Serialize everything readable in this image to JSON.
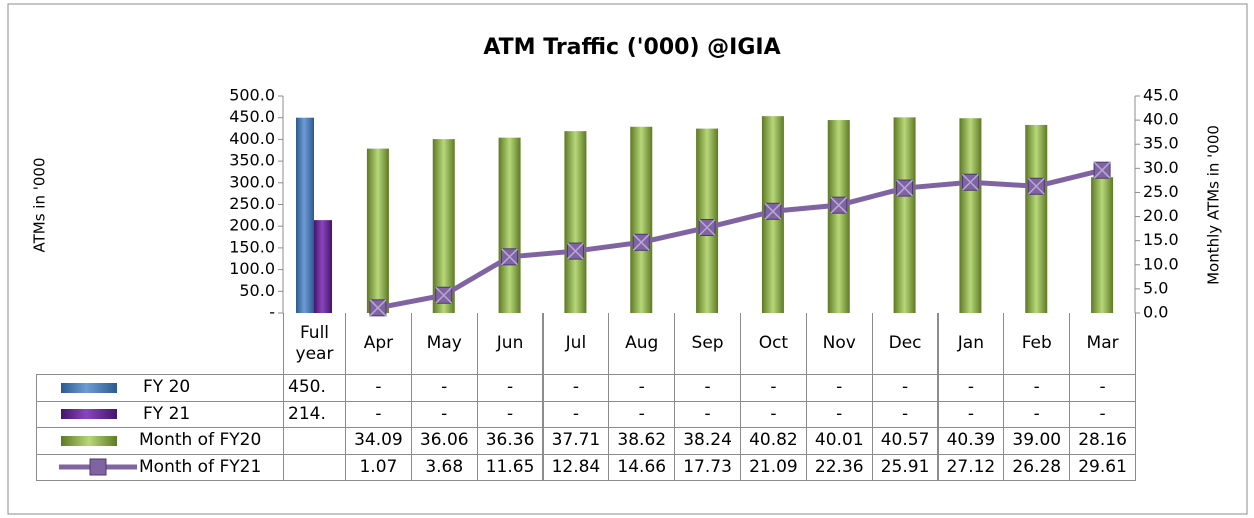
{
  "chart_data": {
    "type": "bar",
    "title": "ATM Traffic ('000) @IGIA",
    "y_label": "ATMs in '000",
    "y2_label": "Monthly  ATMs in '000",
    "categories": [
      "Full year",
      "Apr",
      "May",
      "Jun",
      "Jul",
      "Aug",
      "Sep",
      "Oct",
      "Nov",
      "Dec",
      "Jan",
      "Feb",
      "Mar"
    ],
    "ylim": [
      0,
      500
    ],
    "yticks": [
      {
        "value": 0,
        "label": "-"
      },
      {
        "value": 50,
        "label": "50.0"
      },
      {
        "value": 100,
        "label": "100.0"
      },
      {
        "value": 150,
        "label": "150.0"
      },
      {
        "value": 200,
        "label": "200.0"
      },
      {
        "value": 250,
        "label": "250.0"
      },
      {
        "value": 300,
        "label": "300.0"
      },
      {
        "value": 350,
        "label": "350.0"
      },
      {
        "value": 400,
        "label": "400.0"
      },
      {
        "value": 450,
        "label": "450.0"
      },
      {
        "value": 500,
        "label": "500.0"
      }
    ],
    "y2lim": [
      0,
      45
    ],
    "y2ticks": [
      {
        "value": 0,
        "label": "0.0"
      },
      {
        "value": 5,
        "label": "5.0"
      },
      {
        "value": 10,
        "label": "10.0"
      },
      {
        "value": 15,
        "label": "15.0"
      },
      {
        "value": 20,
        "label": "20.0"
      },
      {
        "value": 25,
        "label": "25.0"
      },
      {
        "value": 30,
        "label": "30.0"
      },
      {
        "value": 35,
        "label": "35.0"
      },
      {
        "value": 40,
        "label": "40.0"
      },
      {
        "value": 45,
        "label": "45.0"
      }
    ],
    "series": [
      {
        "name": "FY 20",
        "type": "bar",
        "color": "#4f81bd",
        "values": [
          450,
          null,
          null,
          null,
          null,
          null,
          null,
          null,
          null,
          null,
          null,
          null,
          null
        ],
        "value_labels": [
          "450.",
          "-",
          "-",
          "-",
          "-",
          "-",
          "-",
          "-",
          "-",
          "-",
          "-",
          "-",
          "-"
        ]
      },
      {
        "name": "FY 21",
        "type": "bar",
        "color": "#7030a0",
        "values": [
          214,
          null,
          null,
          null,
          null,
          null,
          null,
          null,
          null,
          null,
          null,
          null,
          null
        ],
        "value_labels": [
          "214.",
          "-",
          "-",
          "-",
          "-",
          "-",
          "-",
          "-",
          "-",
          "-",
          "-",
          "-",
          "-"
        ]
      },
      {
        "name": "Month of FY20",
        "type": "bar",
        "axis": "y2",
        "color": "#9bbb59",
        "values": [
          null,
          34.09,
          36.06,
          36.36,
          37.71,
          38.62,
          38.24,
          40.82,
          40.01,
          40.57,
          40.39,
          39.0,
          28.16
        ],
        "value_labels": [
          null,
          "34.09",
          "36.06",
          "36.36",
          "37.71",
          "38.62",
          "38.24",
          "40.82",
          "40.01",
          "40.57",
          "40.39",
          "39.00",
          "28.16"
        ]
      },
      {
        "name": "Month of FY21",
        "type": "line",
        "axis": "y2",
        "color": "#8064a2",
        "values": [
          null,
          1.07,
          3.68,
          11.65,
          12.84,
          14.66,
          17.73,
          21.09,
          22.36,
          25.91,
          27.12,
          26.28,
          29.61
        ],
        "value_labels": [
          null,
          "1.07",
          "3.68",
          "11.65",
          "12.84",
          "14.66",
          "17.73",
          "21.09",
          "22.36",
          "25.91",
          "27.12",
          "26.28",
          "29.61"
        ]
      }
    ]
  }
}
